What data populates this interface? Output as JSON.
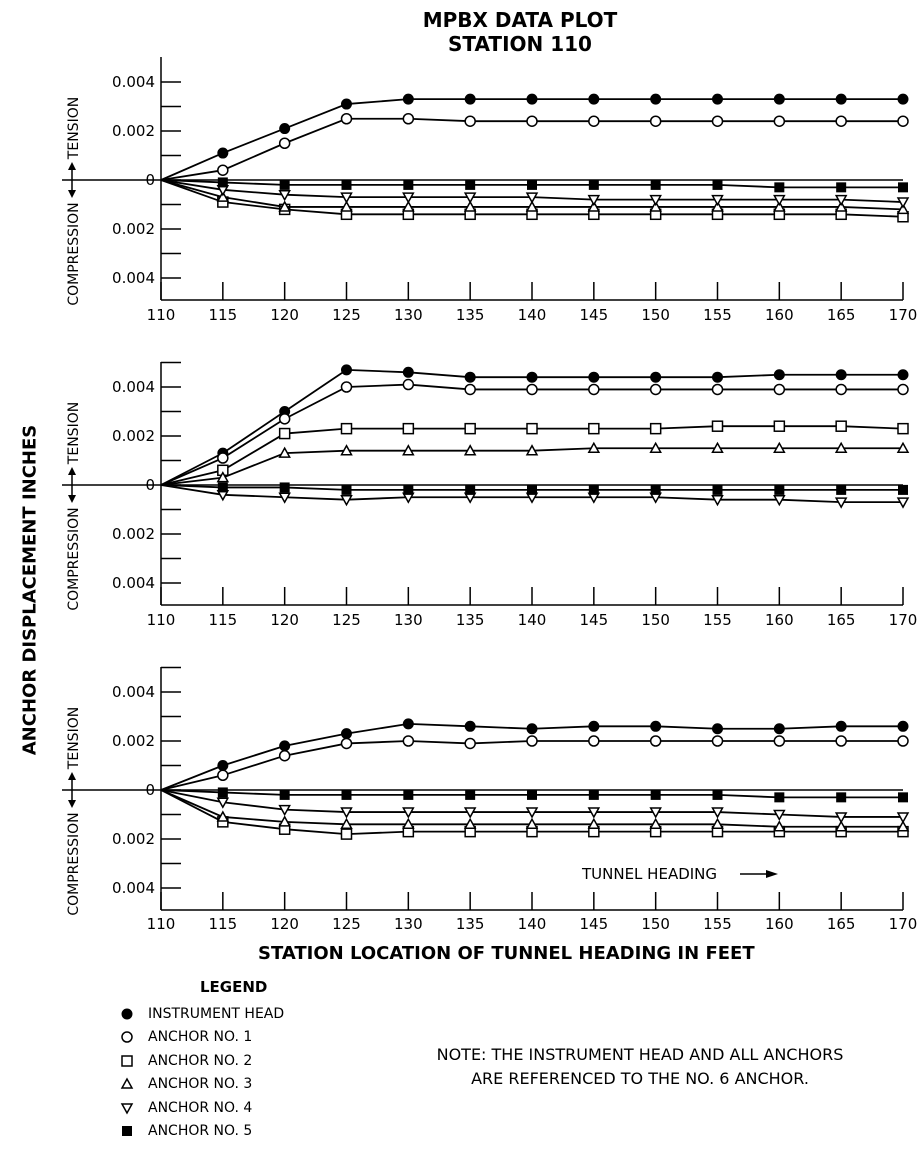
{
  "title_line1": "MPBX DATA PLOT",
  "title_line2": "STATION 110",
  "ylabel_main": "ANCHOR DISPLACEMENT INCHES",
  "xlabel_main": "STATION LOCATION OF TUNNEL HEADING IN FEET",
  "legend": {
    "title": "LEGEND",
    "items": [
      {
        "label": "INSTRUMENT HEAD",
        "marker": "filled-circle"
      },
      {
        "label": "ANCHOR NO. 1",
        "marker": "open-circle"
      },
      {
        "label": "ANCHOR NO. 2",
        "marker": "open-square"
      },
      {
        "label": "ANCHOR NO. 3",
        "marker": "open-triangle-up"
      },
      {
        "label": "ANCHOR NO. 4",
        "marker": "open-triangle-down"
      },
      {
        "label": "ANCHOR NO. 5",
        "marker": "filled-square"
      }
    ]
  },
  "note": {
    "line1": "NOTE: THE INSTRUMENT HEAD AND ALL ANCHORS",
    "line2": "ARE REFERENCED TO THE NO. 6 ANCHOR."
  },
  "chart_data": [
    {
      "type": "line",
      "x": [
        110,
        115,
        120,
        125,
        130,
        135,
        140,
        145,
        150,
        155,
        160,
        165,
        170
      ],
      "xlim": [
        110,
        170
      ],
      "ylim": [
        -0.004,
        0.004
      ],
      "ytick_values": [
        0.004,
        0.002,
        0,
        -0.002,
        -0.004
      ],
      "ytick_labels": [
        "0.004",
        "0.002",
        "0",
        "0.002",
        "0.004"
      ],
      "tension_label": "TENSION",
      "compression_label": "COMPRESSION",
      "series": [
        {
          "name": "INSTRUMENT HEAD",
          "marker": "filled-circle",
          "values": [
            0,
            0.0011,
            0.0021,
            0.0031,
            0.0033,
            0.0033,
            0.0033,
            0.0033,
            0.0033,
            0.0033,
            0.0033,
            0.0033,
            0.0033
          ]
        },
        {
          "name": "ANCHOR NO. 1",
          "marker": "open-circle",
          "values": [
            0,
            0.0004,
            0.0015,
            0.0025,
            0.0025,
            0.0024,
            0.0024,
            0.0024,
            0.0024,
            0.0024,
            0.0024,
            0.0024,
            0.0024
          ]
        },
        {
          "name": "ANCHOR NO. 2",
          "marker": "open-square",
          "values": [
            0,
            -0.0009,
            -0.0012,
            -0.0014,
            -0.0014,
            -0.0014,
            -0.0014,
            -0.0014,
            -0.0014,
            -0.0014,
            -0.0014,
            -0.0014,
            -0.0015
          ]
        },
        {
          "name": "ANCHOR NO. 3",
          "marker": "open-triangle-up",
          "values": [
            0,
            -0.0007,
            -0.0011,
            -0.0011,
            -0.0011,
            -0.0011,
            -0.0011,
            -0.0011,
            -0.0011,
            -0.0011,
            -0.0011,
            -0.0011,
            -0.0012
          ]
        },
        {
          "name": "ANCHOR NO. 4",
          "marker": "open-triangle-down",
          "values": [
            0,
            -0.0004,
            -0.0006,
            -0.0007,
            -0.0007,
            -0.0007,
            -0.0007,
            -0.0008,
            -0.0008,
            -0.0008,
            -0.0008,
            -0.0008,
            -0.0009
          ]
        },
        {
          "name": "ANCHOR NO. 5",
          "marker": "filled-square",
          "values": [
            0,
            -0.0001,
            -0.0002,
            -0.0002,
            -0.0002,
            -0.0002,
            -0.0002,
            -0.0002,
            -0.0002,
            -0.0002,
            -0.0003,
            -0.0003,
            -0.0003
          ]
        }
      ]
    },
    {
      "type": "line",
      "x": [
        110,
        115,
        120,
        125,
        130,
        135,
        140,
        145,
        150,
        155,
        160,
        165,
        170
      ],
      "xlim": [
        110,
        170
      ],
      "ylim": [
        -0.004,
        0.005
      ],
      "ytick_values": [
        0.004,
        0.002,
        0,
        -0.002,
        -0.004
      ],
      "ytick_labels": [
        "0.004",
        "0.002",
        "0",
        "0.002",
        "0.004"
      ],
      "tension_label": "TENSION",
      "compression_label": "COMPRESSION",
      "series": [
        {
          "name": "INSTRUMENT HEAD",
          "marker": "filled-circle",
          "values": [
            0,
            0.0013,
            0.003,
            0.0047,
            0.0046,
            0.0044,
            0.0044,
            0.0044,
            0.0044,
            0.0044,
            0.0045,
            0.0045,
            0.0045
          ]
        },
        {
          "name": "ANCHOR NO. 1",
          "marker": "open-circle",
          "values": [
            0,
            0.0011,
            0.0027,
            0.004,
            0.0041,
            0.0039,
            0.0039,
            0.0039,
            0.0039,
            0.0039,
            0.0039,
            0.0039,
            0.0039
          ]
        },
        {
          "name": "ANCHOR NO. 2",
          "marker": "open-square",
          "values": [
            0,
            0.0006,
            0.0021,
            0.0023,
            0.0023,
            0.0023,
            0.0023,
            0.0023,
            0.0023,
            0.0024,
            0.0024,
            0.0024,
            0.0023
          ]
        },
        {
          "name": "ANCHOR NO. 3",
          "marker": "open-triangle-up",
          "values": [
            0,
            0.0003,
            0.0013,
            0.0014,
            0.0014,
            0.0014,
            0.0014,
            0.0015,
            0.0015,
            0.0015,
            0.0015,
            0.0015,
            0.0015
          ]
        },
        {
          "name": "ANCHOR NO. 4",
          "marker": "open-triangle-down",
          "values": [
            0,
            -0.0004,
            -0.0005,
            -0.0006,
            -0.0005,
            -0.0005,
            -0.0005,
            -0.0005,
            -0.0005,
            -0.0006,
            -0.0006,
            -0.0007,
            -0.0007
          ]
        },
        {
          "name": "ANCHOR NO. 5",
          "marker": "filled-square",
          "values": [
            0,
            -0.0001,
            -0.0001,
            -0.0002,
            -0.0002,
            -0.0002,
            -0.0002,
            -0.0002,
            -0.0002,
            -0.0002,
            -0.0002,
            -0.0002,
            -0.0002
          ]
        }
      ]
    },
    {
      "type": "line",
      "x": [
        110,
        115,
        120,
        125,
        130,
        135,
        140,
        145,
        150,
        155,
        160,
        165,
        170
      ],
      "xlim": [
        110,
        170
      ],
      "ylim": [
        -0.004,
        0.005
      ],
      "ytick_values": [
        0.004,
        0.002,
        0,
        -0.002,
        -0.004
      ],
      "ytick_labels": [
        "0.004",
        "0.002",
        "0",
        "0.002",
        "0.004"
      ],
      "tension_label": "TENSION",
      "compression_label": "COMPRESSION",
      "annotation": "TUNNEL HEADING",
      "series": [
        {
          "name": "INSTRUMENT HEAD",
          "marker": "filled-circle",
          "values": [
            0,
            0.001,
            0.0018,
            0.0023,
            0.0027,
            0.0026,
            0.0025,
            0.0026,
            0.0026,
            0.0025,
            0.0025,
            0.0026,
            0.0026
          ]
        },
        {
          "name": "ANCHOR NO. 1",
          "marker": "open-circle",
          "values": [
            0,
            0.0006,
            0.0014,
            0.0019,
            0.002,
            0.0019,
            0.002,
            0.002,
            0.002,
            0.002,
            0.002,
            0.002,
            0.002
          ]
        },
        {
          "name": "ANCHOR NO. 2",
          "marker": "open-square",
          "values": [
            0,
            -0.0013,
            -0.0016,
            -0.0018,
            -0.0017,
            -0.0017,
            -0.0017,
            -0.0017,
            -0.0017,
            -0.0017,
            -0.0017,
            -0.0017,
            -0.0017
          ]
        },
        {
          "name": "ANCHOR NO. 3",
          "marker": "open-triangle-up",
          "values": [
            0,
            -0.0011,
            -0.0013,
            -0.0014,
            -0.0014,
            -0.0014,
            -0.0014,
            -0.0014,
            -0.0014,
            -0.0014,
            -0.0015,
            -0.0015,
            -0.0015
          ]
        },
        {
          "name": "ANCHOR NO. 4",
          "marker": "open-triangle-down",
          "values": [
            0,
            -0.0005,
            -0.0008,
            -0.0009,
            -0.0009,
            -0.0009,
            -0.0009,
            -0.0009,
            -0.0009,
            -0.0009,
            -0.001,
            -0.0011,
            -0.0011
          ]
        },
        {
          "name": "ANCHOR NO. 5",
          "marker": "filled-square",
          "values": [
            0,
            -0.0001,
            -0.0002,
            -0.0002,
            -0.0002,
            -0.0002,
            -0.0002,
            -0.0002,
            -0.0002,
            -0.0002,
            -0.0003,
            -0.0003,
            -0.0003
          ]
        }
      ]
    }
  ]
}
